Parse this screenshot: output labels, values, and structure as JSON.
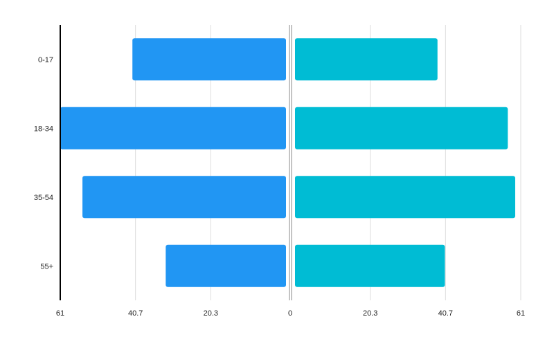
{
  "chart_data": {
    "type": "bar",
    "orientation": "horizontal-diverging",
    "categories": [
      "0-17",
      "18-34",
      "35-54",
      "55+"
    ],
    "series": [
      {
        "values": [
          41.5,
          61.0,
          55.0,
          32.5
        ],
        "color": "#2196F3"
      },
      {
        "values": [
          38.5,
          57.5,
          59.5,
          40.5
        ],
        "color": "#00BCD4"
      }
    ],
    "x_ticks": [
      "61",
      "40.7",
      "20.3",
      "0",
      "20.3",
      "40.7",
      "61"
    ],
    "xlim": [
      0,
      61
    ],
    "grid": true,
    "legend": "none"
  }
}
